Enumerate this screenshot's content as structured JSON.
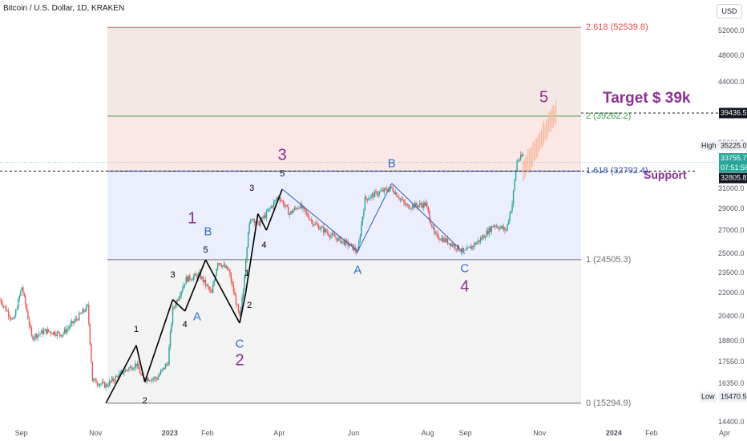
{
  "header": {
    "title": "Bitcoin / U.S. Dollar, 1D, KRAKEN",
    "currency": "USD"
  },
  "chart_data": {
    "type": "candlestick",
    "title": "Bitcoin / U.S. Dollar, 1D, KRAKEN",
    "y_scale": "log",
    "ylim": [
      14400,
      53500
    ],
    "x_ticks": [
      "Sep",
      "Nov",
      "2023",
      "Feb",
      "Apr",
      "Jun",
      "Aug",
      "Sep",
      "Nov",
      "2024",
      "Feb",
      "Apr"
    ],
    "y_ticks": [
      "52000.0",
      "48000.0",
      "44000.0",
      "36000.0",
      "31000.0",
      "29000.0",
      "27000.0",
      "25000.0",
      "23500.0",
      "22000.0",
      "20400.0",
      "18800.0",
      "17550.0",
      "16350.0",
      "14400.0"
    ],
    "fib_levels": [
      {
        "ratio": "2.618",
        "price": 52539.8,
        "label": "2.618 (52539.8)",
        "color": "#e04848"
      },
      {
        "ratio": "2",
        "price": 39262.2,
        "label": "2 (39262.2)",
        "color": "#3c9a48"
      },
      {
        "ratio": "1.618",
        "price": 32792.4,
        "label": "1.618 (32792.4)",
        "color": "#2a4fb0"
      },
      {
        "ratio": "1",
        "price": 24505.3,
        "label": "1 (24505.3)",
        "color": "#707070"
      },
      {
        "ratio": "0",
        "price": 15294.9,
        "label": "0 (15294.9)",
        "color": "#707070"
      }
    ],
    "price_path": [
      {
        "d": "2022-08-25",
        "p": 21500
      },
      {
        "d": "2022-09-05",
        "p": 20000
      },
      {
        "d": "2022-09-12",
        "p": 22400
      },
      {
        "d": "2022-09-20",
        "p": 19000
      },
      {
        "d": "2022-10-01",
        "p": 19400
      },
      {
        "d": "2022-10-15",
        "p": 19200
      },
      {
        "d": "2022-10-25",
        "p": 20000
      },
      {
        "d": "2022-11-05",
        "p": 21000
      },
      {
        "d": "2022-11-09",
        "p": 16500
      },
      {
        "d": "2022-11-20",
        "p": 16200
      },
      {
        "d": "2022-12-05",
        "p": 17000
      },
      {
        "d": "2022-12-15",
        "p": 17400
      },
      {
        "d": "2022-12-20",
        "p": 16600
      },
      {
        "d": "2023-01-01",
        "p": 16600
      },
      {
        "d": "2023-01-10",
        "p": 17500
      },
      {
        "d": "2023-01-14",
        "p": 20800
      },
      {
        "d": "2023-01-25",
        "p": 23000
      },
      {
        "d": "2023-02-05",
        "p": 23300
      },
      {
        "d": "2023-02-15",
        "p": 21900
      },
      {
        "d": "2023-02-20",
        "p": 24400
      },
      {
        "d": "2023-03-01",
        "p": 23600
      },
      {
        "d": "2023-03-10",
        "p": 20200
      },
      {
        "d": "2023-03-13",
        "p": 22200
      },
      {
        "d": "2023-03-17",
        "p": 27000
      },
      {
        "d": "2023-03-20",
        "p": 28200
      },
      {
        "d": "2023-03-25",
        "p": 27500
      },
      {
        "d": "2023-04-01",
        "p": 28500
      },
      {
        "d": "2023-04-11",
        "p": 30200
      },
      {
        "d": "2023-04-20",
        "p": 28500
      },
      {
        "d": "2023-04-28",
        "p": 29300
      },
      {
        "d": "2023-05-10",
        "p": 27600
      },
      {
        "d": "2023-05-25",
        "p": 26500
      },
      {
        "d": "2023-06-10",
        "p": 25600
      },
      {
        "d": "2023-06-15",
        "p": 25100
      },
      {
        "d": "2023-06-21",
        "p": 29900
      },
      {
        "d": "2023-07-01",
        "p": 30500
      },
      {
        "d": "2023-07-13",
        "p": 31000
      },
      {
        "d": "2023-07-25",
        "p": 29200
      },
      {
        "d": "2023-08-10",
        "p": 29400
      },
      {
        "d": "2023-08-17",
        "p": 26600
      },
      {
        "d": "2023-08-28",
        "p": 26000
      },
      {
        "d": "2023-09-11",
        "p": 25100
      },
      {
        "d": "2023-09-25",
        "p": 26300
      },
      {
        "d": "2023-10-05",
        "p": 27500
      },
      {
        "d": "2023-10-15",
        "p": 27000
      },
      {
        "d": "2023-10-20",
        "p": 29500
      },
      {
        "d": "2023-10-24",
        "p": 33900
      },
      {
        "d": "2023-10-29",
        "p": 34500
      }
    ],
    "projection": {
      "from": "2023-10-29",
      "to": "2023-11-25",
      "start": 33000,
      "end": 40000
    },
    "wave_lines": [
      [
        "2022-11-20",
        15294.9,
        "2022-12-15",
        18500
      ],
      [
        "2022-12-15",
        18500,
        "2022-12-22",
        16400
      ],
      [
        "2022-12-22",
        16400,
        "2023-01-14",
        21500
      ],
      [
        "2023-01-14",
        21500,
        "2023-01-24",
        20700
      ],
      [
        "2023-01-24",
        20700,
        "2023-02-10",
        24500
      ],
      [
        "2023-02-10",
        24500,
        "2023-03-10",
        19900
      ],
      [
        "2023-03-10",
        19900,
        "2023-03-15",
        22000
      ],
      [
        "2023-03-15",
        22000,
        "2023-03-25",
        28500
      ],
      [
        "2023-03-25",
        28500,
        "2023-04-01",
        27000
      ],
      [
        "2023-04-01",
        27000,
        "2023-04-14",
        30900
      ]
    ],
    "corrective_lines": [
      [
        "2023-04-14",
        30900,
        "2023-06-15",
        25200
      ],
      [
        "2023-06-15",
        25200,
        "2023-07-13",
        31500
      ],
      [
        "2023-07-13",
        31500,
        "2023-09-11",
        25000
      ]
    ],
    "wave_labels_small": [
      {
        "d": "2022-12-15",
        "p": 19500,
        "t": "1"
      },
      {
        "d": "2022-12-22",
        "p": 15400,
        "t": "2"
      },
      {
        "d": "2023-01-14",
        "p": 23300,
        "t": "3"
      },
      {
        "d": "2023-01-24",
        "p": 19800,
        "t": "4"
      },
      {
        "d": "2023-02-10",
        "p": 25300,
        "t": "5"
      },
      {
        "d": "2023-03-16",
        "p": 23400,
        "t": "1"
      },
      {
        "d": "2023-03-18",
        "p": 21100,
        "t": "2"
      },
      {
        "d": "2023-03-20",
        "p": 31000,
        "t": "3"
      },
      {
        "d": "2023-03-30",
        "p": 25700,
        "t": "4"
      },
      {
        "d": "2023-04-14",
        "p": 32500,
        "t": "5"
      }
    ],
    "wave_labels_blue": [
      {
        "d": "2023-02-12",
        "p": 26900,
        "t": "B"
      },
      {
        "d": "2023-02-03",
        "p": 20300,
        "t": "A"
      },
      {
        "d": "2023-03-10",
        "p": 18600,
        "t": "C"
      },
      {
        "d": "2023-07-13",
        "p": 33600,
        "t": "B"
      },
      {
        "d": "2023-06-15",
        "p": 23700,
        "t": "A"
      },
      {
        "d": "2023-09-11",
        "p": 23800,
        "t": "C"
      }
    ],
    "wave_labels_primary": [
      {
        "d": "2023-01-30",
        "p": 28000,
        "t": "1"
      },
      {
        "d": "2023-03-10",
        "p": 17600,
        "t": "2"
      },
      {
        "d": "2023-04-14",
        "p": 34500,
        "t": "3"
      },
      {
        "d": "2023-09-11",
        "p": 22400,
        "t": "4"
      },
      {
        "d": "2023-11-15",
        "p": 41700,
        "t": "5"
      }
    ]
  },
  "annotations": {
    "target": "Target   $ 39k",
    "support": "Support"
  },
  "price_tags": {
    "high_label": "High",
    "high_value": "35225.0",
    "target_value": "39436.5",
    "current_value": "33755.7",
    "countdown": "07:51:56",
    "support_value": "32805.8",
    "low_label": "Low",
    "low_value": "15470.5"
  },
  "colors": {
    "up": "#26a69a",
    "down": "#ef5350",
    "projection": "#f5b99a"
  }
}
